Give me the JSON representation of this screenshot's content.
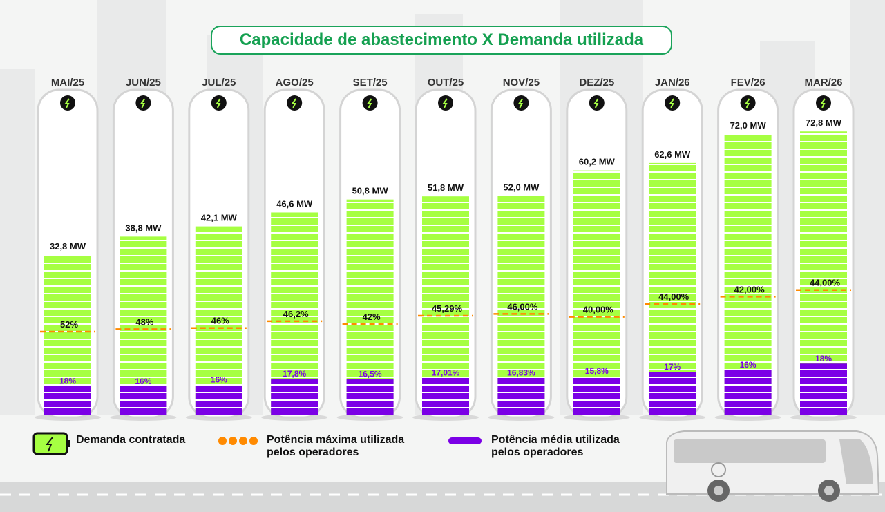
{
  "title": "Capacidade de abastecimento X Demanda utilizada",
  "chart_data": {
    "type": "bar",
    "title": "Capacidade de abastecimento X Demanda utilizada",
    "unit": "MW",
    "categories": [
      "MAI/25",
      "JUN/25",
      "JUL/25",
      "AGO/25",
      "SET/25",
      "OUT/25",
      "NOV/25",
      "DEZ/25",
      "JAN/26",
      "FEV/26",
      "MAR/26"
    ],
    "series": [
      {
        "name": "Demanda contratada",
        "values": [
          32.8,
          38.8,
          42.1,
          46.6,
          50.8,
          51.8,
          52.0,
          60.2,
          62.6,
          72.0,
          72.8
        ],
        "labels": [
          "32,8",
          "38,8",
          "42,1",
          "46,6",
          "50,8",
          "51,8",
          "52,0",
          "60,2",
          "62,6",
          "72,0",
          "72,8"
        ]
      },
      {
        "name": "Potência máxima utilizada pelos operadores",
        "values": [
          52,
          48,
          46,
          46.2,
          42,
          45.29,
          46,
          40,
          44,
          42,
          44
        ],
        "labels": [
          "52%",
          "48%",
          "46%",
          "46,2%",
          "42%",
          "45,29%",
          "46,00%",
          "40,00%",
          "44,00%",
          "42,00%",
          "44,00%"
        ]
      },
      {
        "name": "Potência média utilizada pelos operadores",
        "values": [
          18,
          16,
          16,
          17.8,
          16.5,
          17.01,
          16.83,
          15.8,
          17,
          16,
          18
        ],
        "labels": [
          "18%",
          "16%",
          "16%",
          "17,8%",
          "16,5%",
          "17,01%",
          "16,83%",
          "15,8%",
          "17%",
          "16%",
          "18%"
        ]
      }
    ],
    "colors": {
      "capacity": "#a6ff42",
      "max": "#ff8a00",
      "avg": "#7b00e6",
      "accent": "#14a050"
    }
  },
  "legend": {
    "capacity": "Demanda contratada",
    "max_line1": "Potência máxima utilizada",
    "max_line2": "pelos operadores",
    "avg_line1": "Potência média utilizada",
    "avg_line2": "pelos operadores"
  }
}
